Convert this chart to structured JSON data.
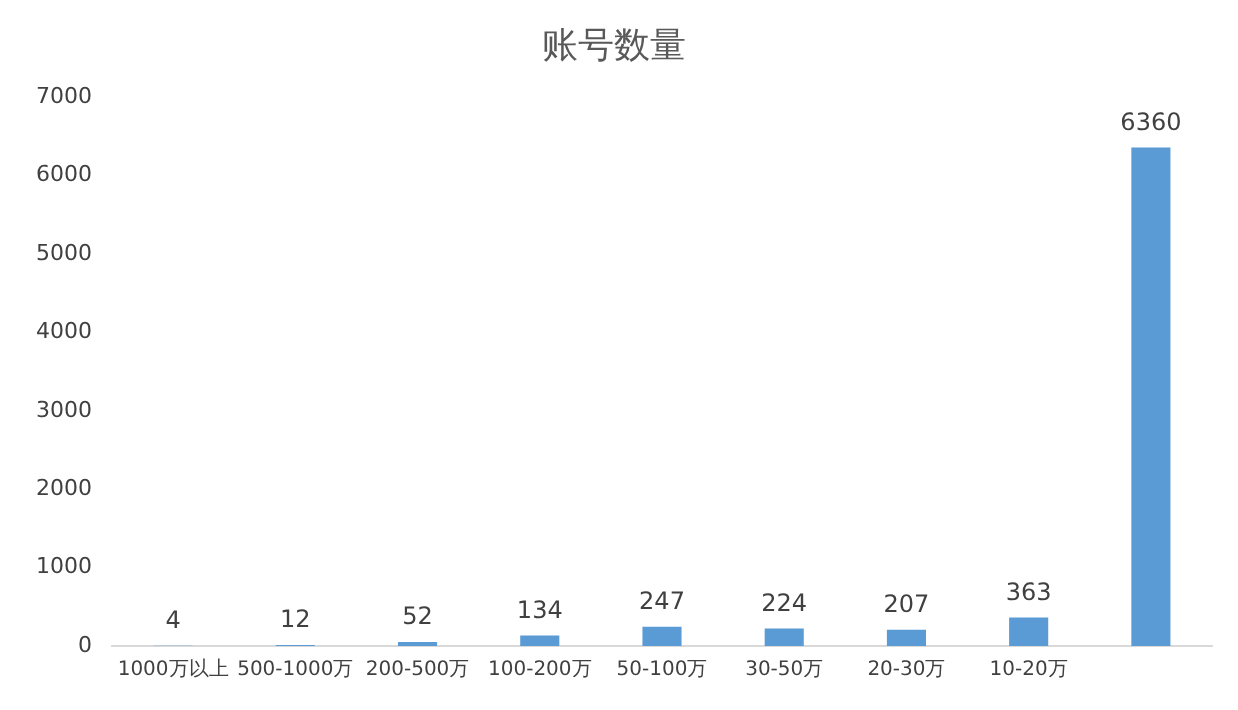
{
  "chart_data": {
    "type": "bar",
    "title": "账号数量",
    "categories": [
      "1000万以上",
      "500-1000万",
      "200-500万",
      "100-200万",
      "50-100万",
      "30-50万",
      "20-30万",
      "10-20万",
      null
    ],
    "values": [
      4,
      12,
      52,
      134,
      247,
      224,
      207,
      363,
      6360
    ],
    "color": "#5b9bd5",
    "ylim": [
      0,
      7000
    ],
    "yticks": [
      0,
      1000,
      2000,
      3000,
      4000,
      5000,
      6000,
      7000
    ],
    "grid": false,
    "data_labels": true,
    "legend": false
  }
}
